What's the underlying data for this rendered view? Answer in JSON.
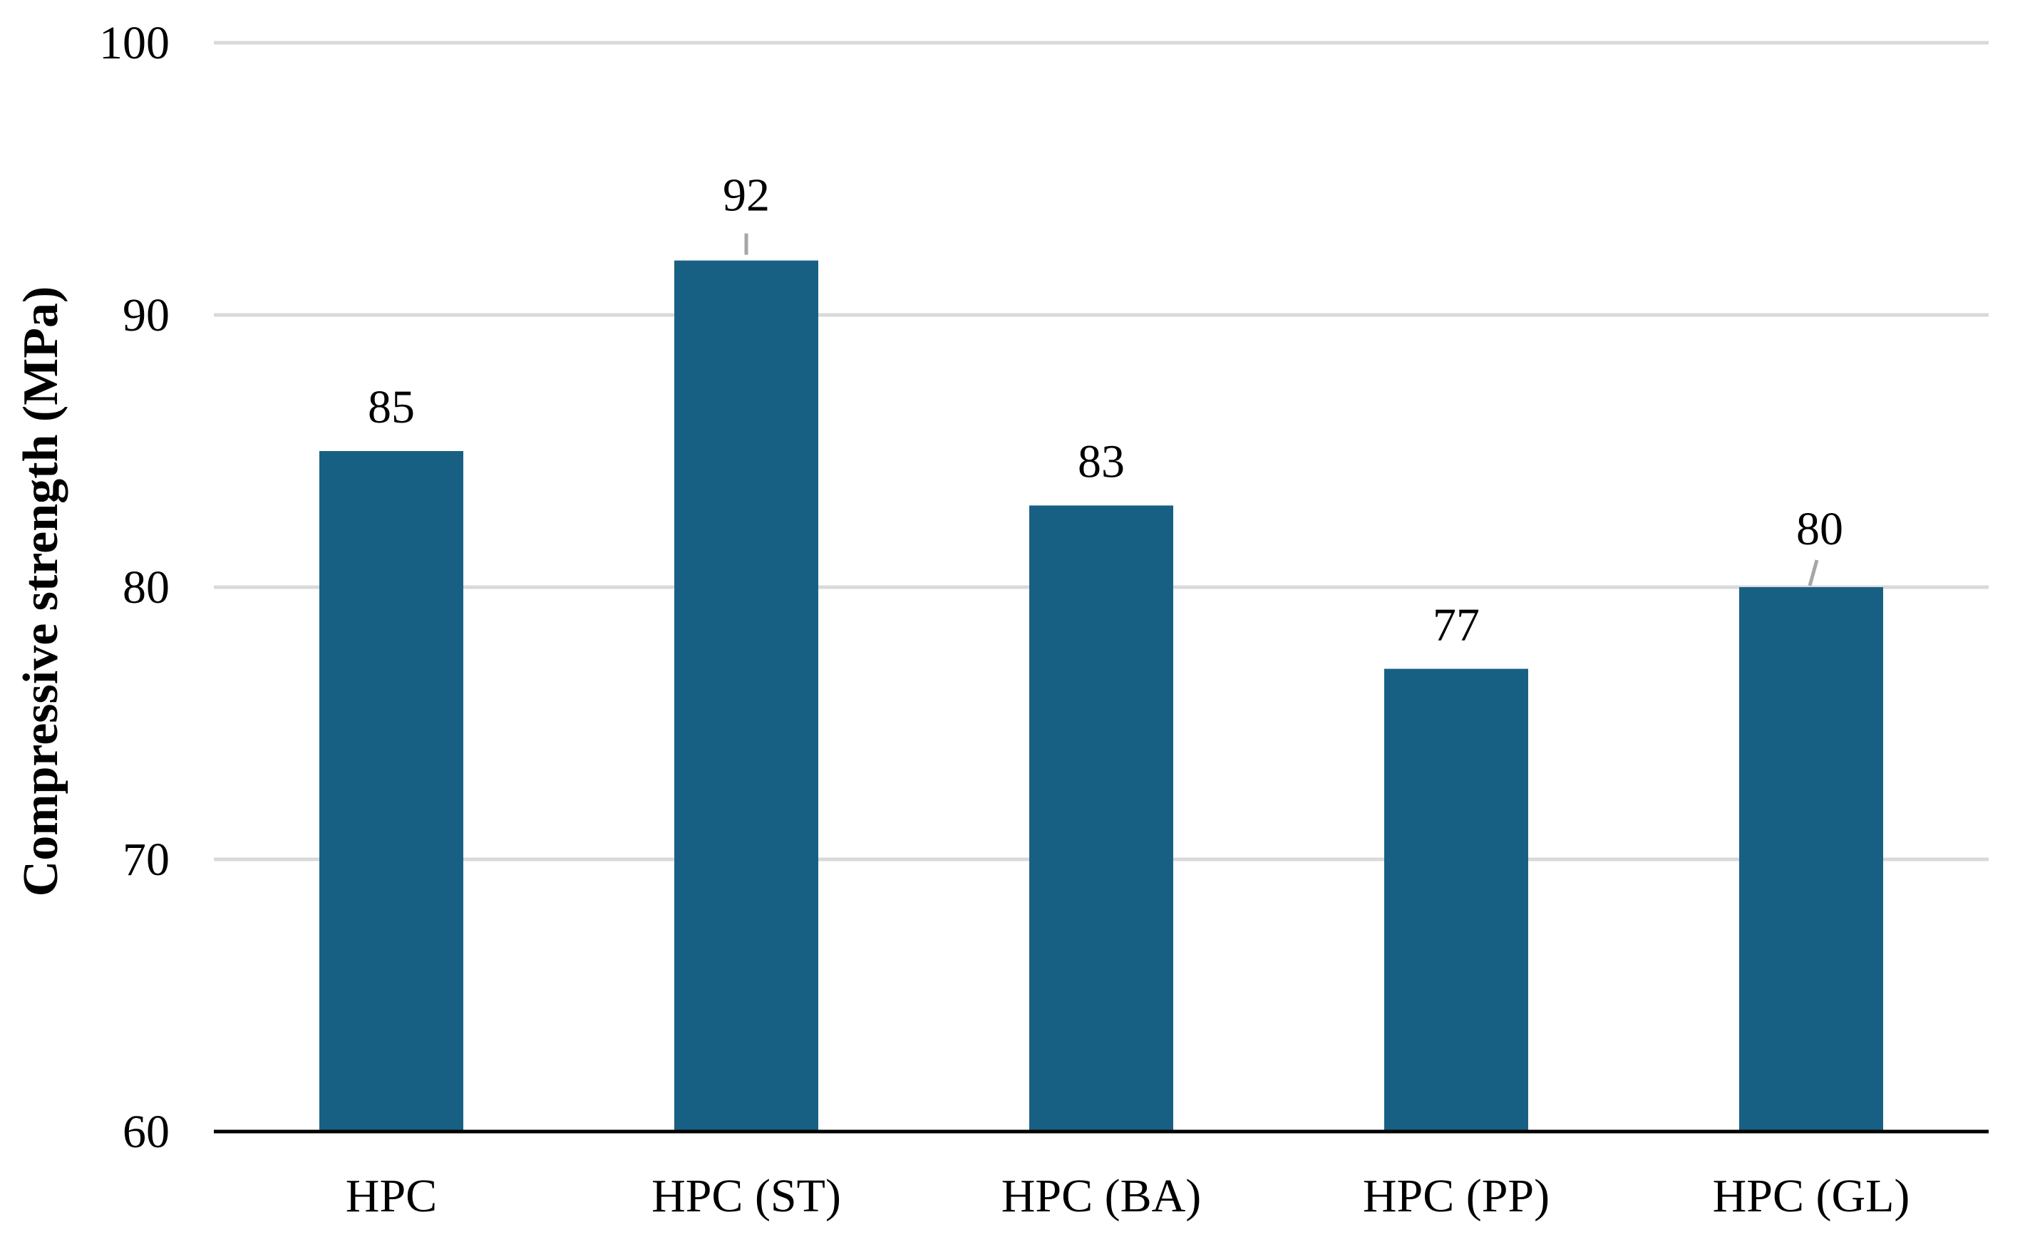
{
  "chart_data": {
    "type": "bar",
    "title": "",
    "xlabel": "",
    "ylabel": "Compressive strength (MPa)",
    "categories": [
      "HPC",
      "HPC (ST)",
      "HPC (BA)",
      "HPC (PP)",
      "HPC (GL)"
    ],
    "values": [
      85,
      92,
      83,
      77,
      80
    ],
    "data_labels": [
      "85",
      "92",
      "83",
      "77",
      "80"
    ],
    "ylim": [
      60,
      100
    ],
    "yticks": [
      60,
      70,
      80,
      90,
      100
    ],
    "grid": true,
    "legend": "none",
    "colors": {
      "bar": "#186083",
      "grid": "#d9d9d9",
      "axis": "#000000",
      "leader": "#a6a6a6"
    }
  }
}
